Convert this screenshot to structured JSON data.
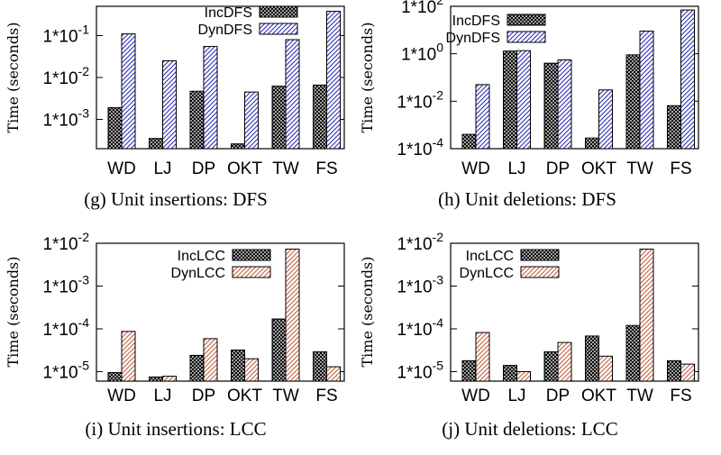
{
  "colors": {
    "inc_hatch": "#000000",
    "dfs_hatch": "#2e2eb8",
    "lcc_hatch": "#c0603e"
  },
  "chart_data": [
    {
      "type": "bar",
      "caption": "(g) Unit insertions: DFS",
      "ylabel": "Time (seconds)",
      "yscale": "log",
      "ylim": [
        0.0002,
        0.5
      ],
      "ticks": [
        {
          "value": 0.001,
          "base": "1*10",
          "exp": "-3"
        },
        {
          "value": 0.01,
          "base": "1*10",
          "exp": "-2"
        },
        {
          "value": 0.1,
          "base": "1*10",
          "exp": "-1"
        }
      ],
      "categories": [
        "WD",
        "LJ",
        "DP",
        "OKT",
        "TW",
        "FS"
      ],
      "legend_position": "top-right",
      "series": [
        {
          "name": "IncDFS",
          "pattern": "inc",
          "values": [
            0.0019,
            0.00035,
            0.0047,
            0.00026,
            0.0062,
            0.0066
          ]
        },
        {
          "name": "DynDFS",
          "pattern": "dfs",
          "values": [
            0.11,
            0.025,
            0.055,
            0.0045,
            0.08,
            0.38
          ]
        }
      ]
    },
    {
      "type": "bar",
      "caption": "(h) Unit deletions: DFS",
      "ylabel": "Time (seconds)",
      "yscale": "log",
      "ylim": [
        0.0001,
        100
      ],
      "ticks": [
        {
          "value": 0.0001,
          "base": "1*10",
          "exp": "-4"
        },
        {
          "value": 0.01,
          "base": "1*10",
          "exp": "-2"
        },
        {
          "value": 1,
          "base": "1*10",
          "exp": "0"
        },
        {
          "value": 100,
          "base": "1*10",
          "exp": "2"
        }
      ],
      "categories": [
        "WD",
        "LJ",
        "DP",
        "OKT",
        "TW",
        "FS"
      ],
      "legend_position": "top-right",
      "series": [
        {
          "name": "IncDFS",
          "pattern": "inc",
          "values": [
            0.0004,
            1.3,
            0.4,
            0.00028,
            0.9,
            0.0065
          ]
        },
        {
          "name": "DynDFS",
          "pattern": "dfs",
          "values": [
            0.05,
            1.35,
            0.55,
            0.03,
            9,
            70
          ]
        }
      ]
    },
    {
      "type": "bar",
      "caption": "(i) Unit insertions: LCC",
      "ylabel": "Time (seconds)",
      "yscale": "log",
      "ylim": [
        6e-06,
        0.01
      ],
      "ticks": [
        {
          "value": 1e-05,
          "base": "1*10",
          "exp": "-5"
        },
        {
          "value": 0.0001,
          "base": "1*10",
          "exp": "-4"
        },
        {
          "value": 0.001,
          "base": "1*10",
          "exp": "-3"
        },
        {
          "value": 0.01,
          "base": "1*10",
          "exp": "-2"
        }
      ],
      "categories": [
        "WD",
        "LJ",
        "DP",
        "OKT",
        "TW",
        "FS"
      ],
      "legend_position": "top-left",
      "series": [
        {
          "name": "IncLCC",
          "pattern": "inc",
          "values": [
            9.5e-06,
            7.5e-06,
            2.4e-05,
            3.2e-05,
            0.00017,
            2.9e-05
          ]
        },
        {
          "name": "DynLCC",
          "pattern": "lcc",
          "values": [
            8.7e-05,
            7.8e-06,
            5.9e-05,
            2e-05,
            0.0073,
            1.3e-05
          ]
        }
      ]
    },
    {
      "type": "bar",
      "caption": "(j) Unit deletions: LCC",
      "ylabel": "Time (seconds)",
      "yscale": "log",
      "ylim": [
        6e-06,
        0.01
      ],
      "ticks": [
        {
          "value": 1e-05,
          "base": "1*10",
          "exp": "-5"
        },
        {
          "value": 0.0001,
          "base": "1*10",
          "exp": "-4"
        },
        {
          "value": 0.001,
          "base": "1*10",
          "exp": "-3"
        },
        {
          "value": 0.01,
          "base": "1*10",
          "exp": "-2"
        }
      ],
      "categories": [
        "WD",
        "LJ",
        "DP",
        "OKT",
        "TW",
        "FS"
      ],
      "legend_position": "top-left",
      "series": [
        {
          "name": "IncLCC",
          "pattern": "inc",
          "values": [
            1.8e-05,
            1.4e-05,
            2.9e-05,
            6.8e-05,
            0.00012,
            1.8e-05
          ]
        },
        {
          "name": "DynLCC",
          "pattern": "lcc",
          "values": [
            8.2e-05,
            1e-05,
            4.8e-05,
            2.3e-05,
            0.0073,
            1.5e-05
          ]
        }
      ]
    }
  ]
}
